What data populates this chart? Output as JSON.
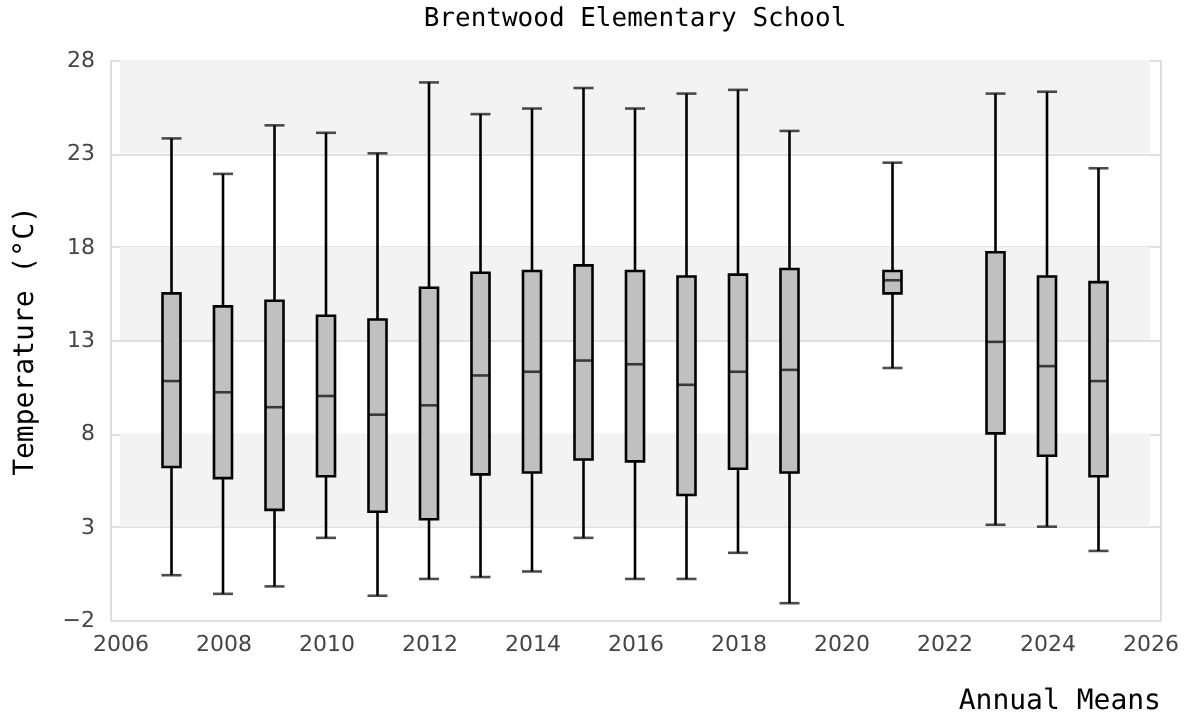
{
  "chart_data": {
    "type": "box",
    "title": "Brentwood Elementary School",
    "xlabel": "Annual Means",
    "ylabel": "Temperature (°C)",
    "x": [
      2007,
      2008,
      2009,
      2010,
      2011,
      2012,
      2013,
      2014,
      2015,
      2016,
      2017,
      2018,
      2019,
      2021,
      2023,
      2024,
      2025
    ],
    "series": [
      {
        "color": "#c0c0c0",
        "boxes": [
          {
            "low": 0.4,
            "q1": 6.2,
            "median": 10.8,
            "q3": 15.5,
            "high": 23.8
          },
          {
            "low": -0.6,
            "q1": 5.6,
            "median": 10.2,
            "q3": 14.8,
            "high": 21.9
          },
          {
            "low": -0.2,
            "q1": 3.9,
            "median": 9.4,
            "q3": 15.1,
            "high": 24.5
          },
          {
            "low": 2.4,
            "q1": 5.7,
            "median": 10.0,
            "q3": 14.3,
            "high": 24.1
          },
          {
            "low": -0.7,
            "q1": 3.8,
            "median": 9.0,
            "q3": 14.1,
            "high": 23.0
          },
          {
            "low": 0.2,
            "q1": 3.4,
            "median": 9.5,
            "q3": 15.8,
            "high": 26.8
          },
          {
            "low": 0.3,
            "q1": 5.8,
            "median": 11.1,
            "q3": 16.6,
            "high": 25.1
          },
          {
            "low": 0.6,
            "q1": 5.9,
            "median": 11.3,
            "q3": 16.7,
            "high": 25.4
          },
          {
            "low": 2.4,
            "q1": 6.6,
            "median": 11.9,
            "q3": 17.0,
            "high": 26.5
          },
          {
            "low": 0.2,
            "q1": 6.5,
            "median": 11.7,
            "q3": 16.7,
            "high": 25.4
          },
          {
            "low": 0.2,
            "q1": 4.7,
            "median": 10.6,
            "q3": 16.4,
            "high": 26.2
          },
          {
            "low": 1.6,
            "q1": 6.1,
            "median": 11.3,
            "q3": 16.5,
            "high": 26.4
          },
          {
            "low": -1.1,
            "q1": 5.9,
            "median": 11.4,
            "q3": 16.8,
            "high": 24.2
          },
          {
            "low": 11.5,
            "q1": 15.5,
            "median": 16.2,
            "q3": 16.7,
            "high": 22.5
          },
          {
            "low": 3.1,
            "q1": 8.0,
            "median": 12.9,
            "q3": 17.7,
            "high": 26.2
          },
          {
            "low": 3.0,
            "q1": 6.8,
            "median": 11.6,
            "q3": 16.4,
            "high": 26.3
          },
          {
            "low": 1.7,
            "q1": 5.7,
            "median": 10.8,
            "q3": 16.1,
            "high": 22.2
          }
        ]
      }
    ],
    "xlim": [
      2006,
      2026
    ],
    "xticks": [
      2006,
      2008,
      2010,
      2012,
      2014,
      2016,
      2018,
      2020,
      2022,
      2024,
      2026
    ],
    "ylim": [
      -2,
      28
    ],
    "yticks": [
      -2,
      3,
      8,
      13,
      18,
      23,
      28
    ],
    "grid": "y",
    "bands": [
      {
        "axis": "y",
        "from": 3,
        "to": 8,
        "color": "#f3f3f3"
      },
      {
        "axis": "y",
        "from": 13,
        "to": 18,
        "color": "#f3f3f3"
      },
      {
        "axis": "y",
        "from": 23,
        "to": 28,
        "color": "#f3f3f3"
      }
    ]
  }
}
